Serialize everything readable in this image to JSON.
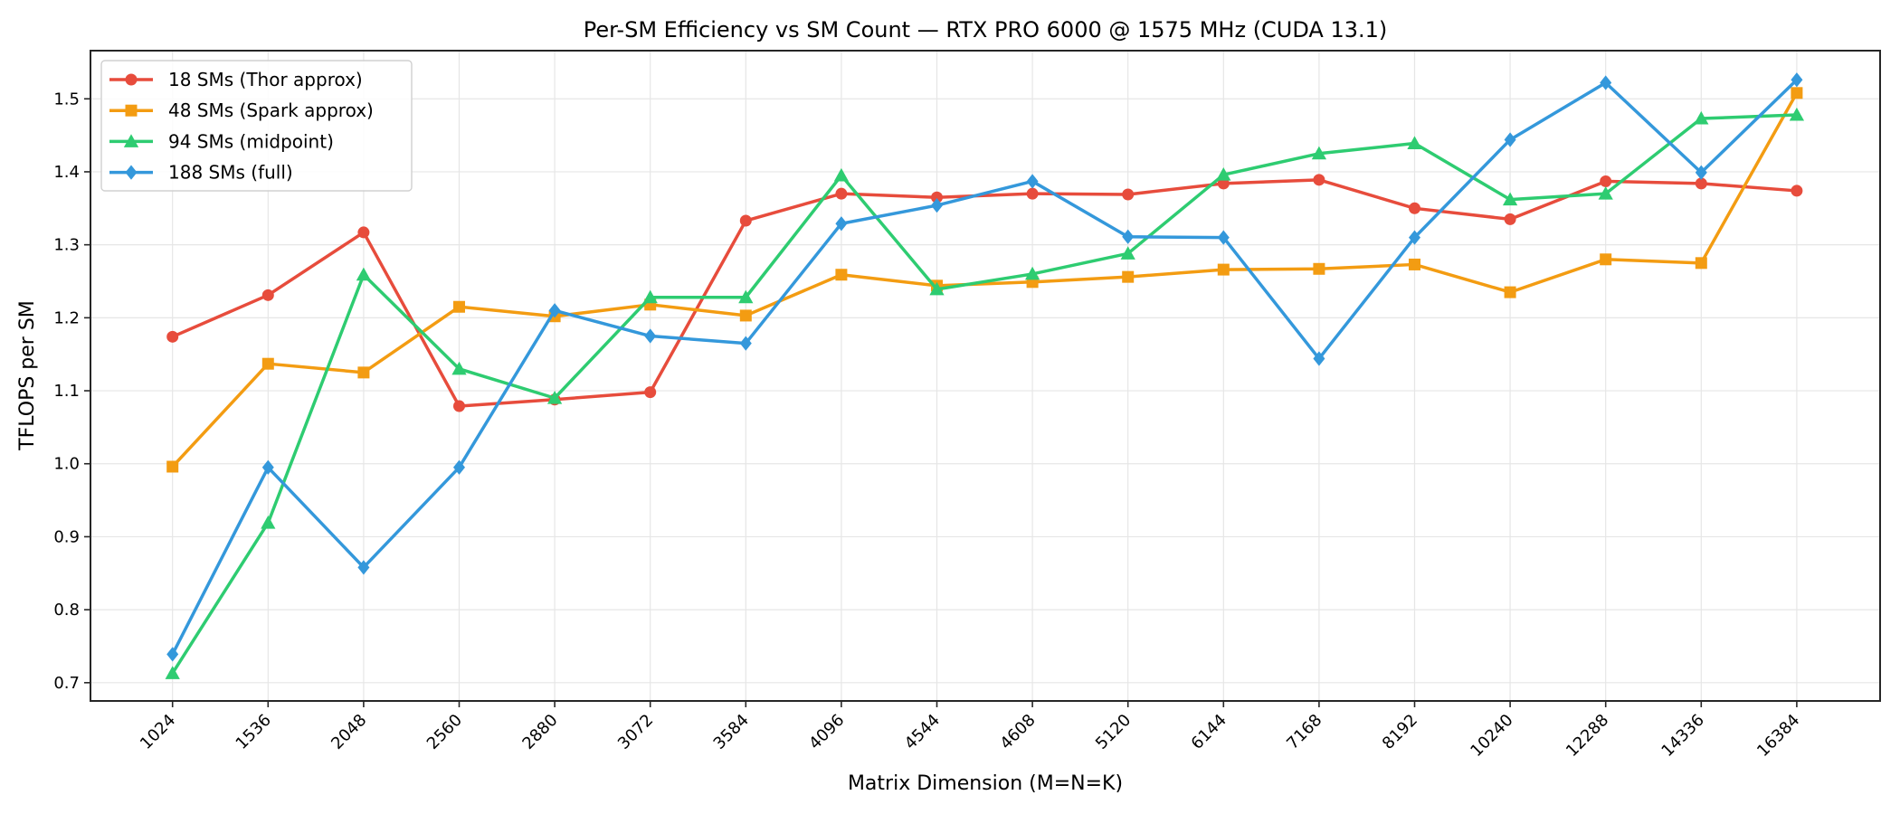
{
  "chart_data": {
    "type": "line",
    "title": "Per-SM Efficiency vs SM Count — RTX PRO 6000 @ 1575 MHz (CUDA 13.1)",
    "xlabel": "Matrix Dimension (M=N=K)",
    "ylabel": "TFLOPS per SM",
    "x": [
      "1024",
      "1536",
      "2048",
      "2560",
      "2880",
      "3072",
      "3584",
      "4096",
      "4544",
      "4608",
      "5120",
      "6144",
      "7168",
      "8192",
      "10240",
      "12288",
      "14336",
      "16384"
    ],
    "x_scale": "categorical",
    "ylim": [
      0.675,
      1.566
    ],
    "yticks": [
      "0.7",
      "0.8",
      "0.9",
      "1.0",
      "1.1",
      "1.2",
      "1.3",
      "1.4",
      "1.5"
    ],
    "ytick_values": [
      0.7,
      0.8,
      0.9,
      1.0,
      1.1,
      1.2,
      1.3,
      1.4,
      1.5
    ],
    "grid": true,
    "legend_position": "top-left",
    "series": [
      {
        "name": "18 SMs (Thor approx)",
        "color": "#e74c3c",
        "marker": "circle",
        "values": [
          1.174,
          1.231,
          1.317,
          1.079,
          1.088,
          1.098,
          1.333,
          1.37,
          1.365,
          1.37,
          1.369,
          1.384,
          1.389,
          1.35,
          1.335,
          1.387,
          1.384,
          1.374
        ]
      },
      {
        "name": "48 SMs (Spark approx)",
        "color": "#f39c12",
        "marker": "square",
        "values": [
          0.996,
          1.137,
          1.125,
          1.215,
          1.202,
          1.218,
          1.203,
          1.259,
          1.244,
          1.249,
          1.256,
          1.266,
          1.267,
          1.273,
          1.235,
          1.28,
          1.275,
          1.508
        ]
      },
      {
        "name": "94 SMs (midpoint)",
        "color": "#2ecc71",
        "marker": "triangle",
        "values": [
          0.713,
          0.919,
          1.259,
          1.13,
          1.09,
          1.228,
          1.228,
          1.395,
          1.239,
          1.26,
          1.288,
          1.396,
          1.425,
          1.439,
          1.362,
          1.37,
          1.473,
          1.478
        ]
      },
      {
        "name": "188 SMs (full)",
        "color": "#3498db",
        "marker": "diamond",
        "values": [
          0.739,
          0.995,
          0.858,
          0.995,
          1.21,
          1.175,
          1.165,
          1.329,
          1.354,
          1.387,
          1.311,
          1.31,
          1.144,
          1.31,
          1.444,
          1.522,
          1.399,
          1.526
        ]
      }
    ]
  }
}
